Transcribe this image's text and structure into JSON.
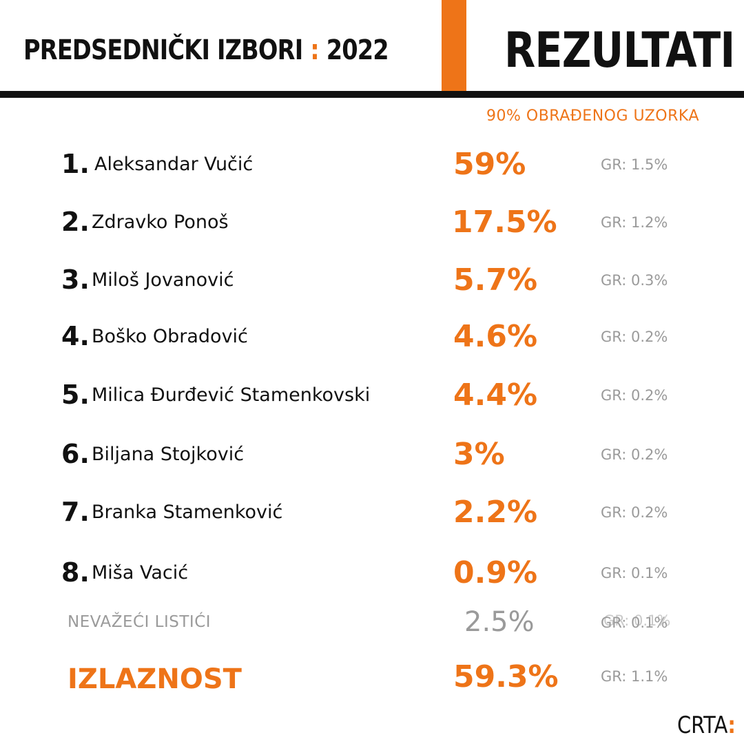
{
  "header": {
    "title": "PREDSEDNIČKI IZBORI",
    "colon": ":",
    "year": "2022",
    "results_label": "REZULTATI",
    "sample_note": "90% OBRAĐENOG UZORKA"
  },
  "candidates": [
    {
      "rank": "1.",
      "name": "Aleksandar Vučić",
      "percent": "59%",
      "margin": "GR: 1.5%"
    },
    {
      "rank": "2.",
      "name": "Zdravko Ponoš",
      "percent": "17.5%",
      "margin": "GR: 1.2%"
    },
    {
      "rank": "3.",
      "name": "Miloš Jovanović",
      "percent": "5.7%",
      "margin": "GR: 0.3%"
    },
    {
      "rank": "4.",
      "name": "Boško Obradović",
      "percent": "4.6%",
      "margin": "GR: 0.2%"
    },
    {
      "rank": "5.",
      "name": "Milica Đurđević Stamenkovski",
      "percent": "4.4%",
      "margin": "GR: 0.2%"
    },
    {
      "rank": "6.",
      "name": "Biljana Stojković",
      "percent": "3%",
      "margin": "GR: 0.2%"
    },
    {
      "rank": "7.",
      "name": "Branka Stamenković",
      "percent": "2.2%",
      "margin": "GR: 0.2%"
    },
    {
      "rank": "8.",
      "name": "Miša Vacić",
      "percent": "0.9%",
      "margin": "GR: 0.1%"
    }
  ],
  "invalid": {
    "label": "NEVAŽEĆI LISTIĆI",
    "percent": "2.5%",
    "margin": "GR: 0.1%",
    "margin_ghost": "GR: 0.1%"
  },
  "turnout": {
    "label": "IZLAZNOST",
    "percent": "59.3%",
    "margin": "GR: 1.1%"
  },
  "logo": {
    "text": "CRTA",
    "colon": ":"
  },
  "colors": {
    "accent": "#ee7418",
    "text": "#111111",
    "muted": "#9a9a9a",
    "background": "#ffffff"
  }
}
